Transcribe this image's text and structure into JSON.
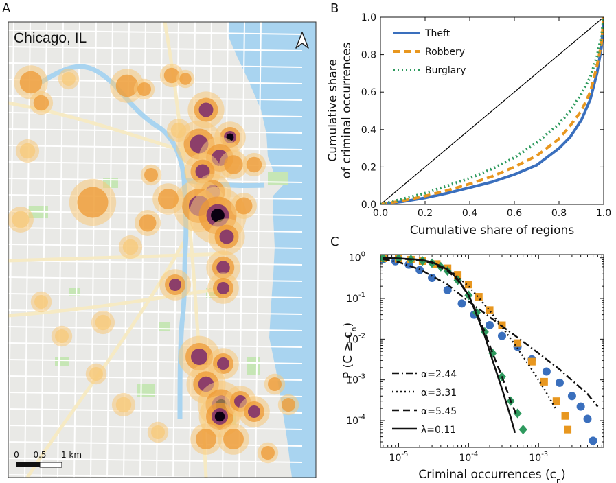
{
  "panels": {
    "a": {
      "letter": "A",
      "map_title": "Chicago, IL",
      "scale_ticks": [
        "0",
        "0.5",
        "1 km"
      ],
      "colors": {
        "water": "#a9d4f0",
        "land": "#e9e9e6",
        "park": "#c6e6b5",
        "road": "#f6eac4",
        "heat_low": "#f7c97a",
        "heat_mid": "#ee9a34",
        "heat_high": "#7a2b6e",
        "heat_peak": "#0a0010"
      }
    },
    "b": {
      "letter": "B"
    },
    "c": {
      "letter": "C"
    }
  },
  "chart_data": [
    {
      "type": "line",
      "panel": "B",
      "xlabel": "Cumulative share of regions",
      "ylabel": [
        "Cumulative share",
        "of criminal occurrences"
      ],
      "xlim": [
        0,
        1
      ],
      "ylim": [
        0,
        1
      ],
      "xticks": [
        "0.0",
        "0.2",
        "0.4",
        "0.6",
        "0.8",
        "1.0"
      ],
      "yticks": [
        "0.0",
        "0.2",
        "0.4",
        "0.6",
        "0.8",
        "1.0"
      ],
      "legend_position": "top-left",
      "equality_line": {
        "x": [
          0,
          1
        ],
        "y": [
          0,
          1
        ],
        "color": "#000000"
      },
      "series": [
        {
          "name": "Theft",
          "color": "#3a6fbd",
          "style": "solid",
          "x": [
            0,
            0.1,
            0.2,
            0.3,
            0.4,
            0.5,
            0.6,
            0.7,
            0.8,
            0.85,
            0.9,
            0.94,
            0.97,
            0.99,
            1.0
          ],
          "y": [
            0,
            0.015,
            0.035,
            0.06,
            0.09,
            0.12,
            0.16,
            0.21,
            0.3,
            0.36,
            0.45,
            0.56,
            0.7,
            0.84,
            1.0
          ]
        },
        {
          "name": "Robbery",
          "color": "#e8971f",
          "style": "dashed",
          "x": [
            0,
            0.1,
            0.2,
            0.3,
            0.4,
            0.5,
            0.6,
            0.7,
            0.8,
            0.85,
            0.9,
            0.94,
            0.97,
            0.99,
            1.0
          ],
          "y": [
            0,
            0.02,
            0.045,
            0.075,
            0.11,
            0.15,
            0.2,
            0.26,
            0.35,
            0.42,
            0.5,
            0.6,
            0.74,
            0.86,
            1.0
          ]
        },
        {
          "name": "Burglary",
          "color": "#2e9a5e",
          "style": "dotted",
          "x": [
            0,
            0.1,
            0.2,
            0.3,
            0.4,
            0.5,
            0.6,
            0.7,
            0.8,
            0.85,
            0.9,
            0.94,
            0.97,
            0.99,
            1.0
          ],
          "y": [
            0,
            0.03,
            0.06,
            0.1,
            0.14,
            0.19,
            0.25,
            0.33,
            0.43,
            0.5,
            0.59,
            0.68,
            0.79,
            0.9,
            1.0
          ]
        }
      ]
    },
    {
      "type": "scatter",
      "panel": "C",
      "xscale": "log",
      "yscale": "log",
      "xlabel": "Criminal occurrences (c",
      "xlabel_sub": "n",
      "xlabel_end": ")",
      "ylabel": "P (C ≥ c",
      "ylabel_sub": "n",
      "ylabel_end": ")",
      "xlim": [
        5.5e-06,
        0.0085
      ],
      "ylim": [
        2.2e-05,
        1.2
      ],
      "xticks": [
        {
          "value": 1e-05,
          "base": "10",
          "exp": "-5"
        },
        {
          "value": 0.0001,
          "base": "10",
          "exp": "-4"
        },
        {
          "value": 0.001,
          "base": "10",
          "exp": "-3"
        }
      ],
      "yticks": [
        {
          "value": 1,
          "base": "10",
          "exp": "0"
        },
        {
          "value": 0.1,
          "base": "10",
          "exp": "-1"
        },
        {
          "value": 0.01,
          "base": "10",
          "exp": "-2"
        },
        {
          "value": 0.001,
          "base": "10",
          "exp": "-3"
        },
        {
          "value": 0.0001,
          "base": "10",
          "exp": "-4"
        }
      ],
      "legend_position": "bottom-left",
      "series": [
        {
          "marker": "circle",
          "color": "#3a6fbd",
          "x": [
            6e-06,
            9e-06,
            1.4e-05,
            2e-05,
            3e-05,
            5e-05,
            8e-05,
            0.00012,
            0.0002,
            0.0003,
            0.0005,
            0.0008,
            0.0013,
            0.002,
            0.003,
            0.004,
            0.005,
            0.006
          ],
          "y": [
            0.92,
            0.82,
            0.68,
            0.5,
            0.32,
            0.16,
            0.075,
            0.04,
            0.022,
            0.012,
            0.0065,
            0.0032,
            0.0016,
            0.00085,
            0.0004,
            0.00022,
            0.00011,
            3.2e-05
          ]
        },
        {
          "marker": "square",
          "color": "#e8971f",
          "x": [
            6e-06,
            1e-05,
            1.5e-05,
            2.2e-05,
            3.5e-05,
            5e-05,
            7e-05,
            0.0001,
            0.00014,
            0.0002,
            0.0003,
            0.0005,
            0.0008,
            0.0012,
            0.0018,
            0.0024,
            0.0026
          ],
          "y": [
            0.97,
            0.94,
            0.9,
            0.83,
            0.7,
            0.55,
            0.38,
            0.22,
            0.11,
            0.052,
            0.022,
            0.008,
            0.0028,
            0.0009,
            0.0003,
            0.00013,
            6e-05
          ]
        },
        {
          "marker": "diamond",
          "color": "#2e9a5e",
          "x": [
            6e-06,
            1e-05,
            1.5e-05,
            2.2e-05,
            3e-05,
            4e-05,
            5e-05,
            7e-05,
            0.0001,
            0.00013,
            0.00017,
            0.00022,
            0.0003,
            0.0004,
            0.0005,
            0.0006
          ],
          "y": [
            0.98,
            0.96,
            0.91,
            0.84,
            0.74,
            0.6,
            0.47,
            0.28,
            0.12,
            0.045,
            0.015,
            0.0045,
            0.0012,
            0.0003,
            0.00015,
            6e-05
          ]
        }
      ],
      "fits": [
        {
          "label": "α=2.44",
          "style": "dashdot",
          "x": [
            6e-06,
            1e-05,
            2e-05,
            5e-05,
            0.0001,
            0.0002,
            0.0005,
            0.001,
            0.002,
            0.005,
            0.007
          ],
          "y": [
            0.92,
            0.78,
            0.52,
            0.22,
            0.085,
            0.035,
            0.011,
            0.0045,
            0.0018,
            0.00045,
            0.00022
          ]
        },
        {
          "label": "α=3.31",
          "style": "dotted",
          "x": [
            6e-05,
            0.0001,
            0.00015,
            0.0002,
            0.0003,
            0.0005,
            0.0008,
            0.0012,
            0.0018
          ],
          "y": [
            0.42,
            0.2,
            0.09,
            0.05,
            0.02,
            0.006,
            0.0018,
            0.0006,
            0.00018
          ]
        },
        {
          "label": "α=5.45",
          "style": "dashed",
          "x": [
            6e-06,
            1e-05,
            2e-05,
            3e-05,
            5e-05,
            7e-05,
            0.0001,
            0.00013,
            0.00017,
            0.00022,
            0.0003,
            0.0004,
            0.0005
          ],
          "y": [
            0.98,
            0.96,
            0.87,
            0.74,
            0.48,
            0.28,
            0.12,
            0.045,
            0.015,
            0.0045,
            0.0012,
            0.0003,
            0.00012
          ]
        },
        {
          "label": "λ=0.11",
          "style": "solid",
          "x": [
            6e-06,
            1e-05,
            2e-05,
            3e-05,
            5e-05,
            7e-05,
            0.0001,
            0.00013,
            0.00017,
            0.00022,
            0.0003,
            0.0004,
            0.00046
          ],
          "y": [
            0.99,
            0.97,
            0.9,
            0.78,
            0.52,
            0.3,
            0.12,
            0.04,
            0.012,
            0.003,
            0.0006,
            0.00012,
            5e-05
          ]
        }
      ]
    }
  ]
}
